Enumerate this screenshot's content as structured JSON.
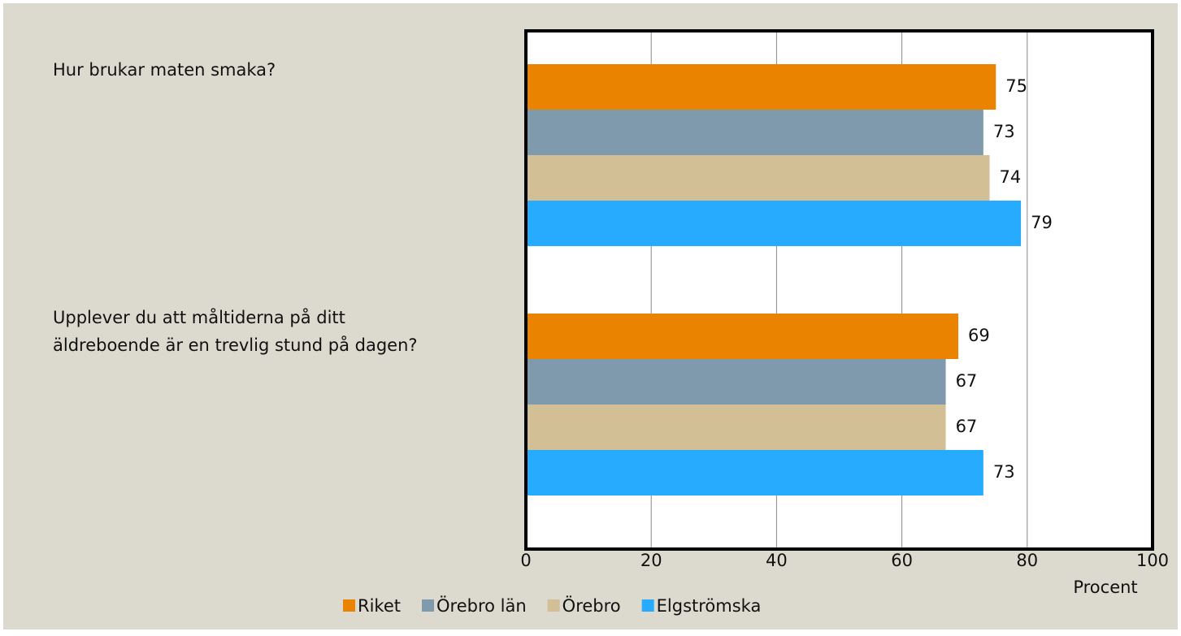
{
  "chart_data": {
    "type": "bar",
    "orientation": "horizontal",
    "categories": [
      "Hur brukar maten smaka?",
      "Upplever du att måltiderna på ditt äldreboende är en trevlig stund på dagen?"
    ],
    "series": [
      {
        "name": "Riket",
        "color": "#e98300",
        "values": [
          75,
          69
        ]
      },
      {
        "name": "Örebro län",
        "color": "#7f9aad",
        "values": [
          73,
          67
        ]
      },
      {
        "name": "Örebro",
        "color": "#d3bf96",
        "values": [
          74,
          67
        ]
      },
      {
        "name": "Elgströmska",
        "color": "#27abff",
        "values": [
          79,
          73
        ]
      }
    ],
    "xlabel": "Procent",
    "xlim": [
      0,
      100
    ],
    "xticks": [
      0,
      20,
      40,
      60,
      80,
      100
    ],
    "grid": true,
    "legend": "bottom"
  }
}
